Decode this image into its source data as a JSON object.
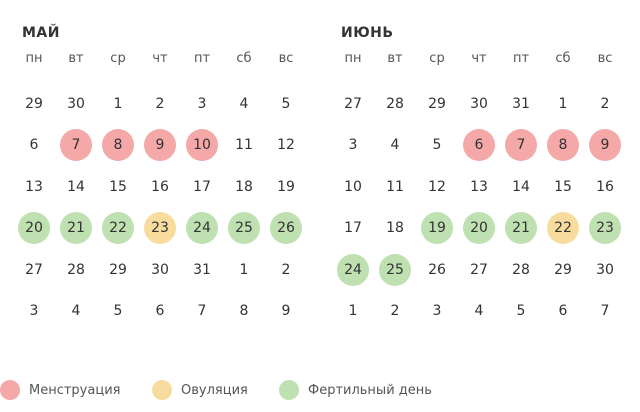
{
  "colors": {
    "menstruation": "#f4a8a8",
    "ovulation": "#f8dc9e",
    "fertile": "#bfe0b0"
  },
  "months": [
    {
      "title": "МАЙ",
      "weekdays": [
        "пн",
        "вт",
        "ср",
        "чт",
        "пт",
        "сб",
        "вс"
      ],
      "weeks": [
        [
          {
            "d": "29",
            "t": ""
          },
          {
            "d": "30",
            "t": ""
          },
          {
            "d": "1",
            "t": ""
          },
          {
            "d": "2",
            "t": ""
          },
          {
            "d": "3",
            "t": ""
          },
          {
            "d": "4",
            "t": ""
          },
          {
            "d": "5",
            "t": ""
          }
        ],
        [
          {
            "d": "6",
            "t": ""
          },
          {
            "d": "7",
            "t": "m"
          },
          {
            "d": "8",
            "t": "m"
          },
          {
            "d": "9",
            "t": "m"
          },
          {
            "d": "10",
            "t": "m"
          },
          {
            "d": "11",
            "t": ""
          },
          {
            "d": "12",
            "t": ""
          }
        ],
        [
          {
            "d": "13",
            "t": ""
          },
          {
            "d": "14",
            "t": ""
          },
          {
            "d": "15",
            "t": ""
          },
          {
            "d": "16",
            "t": ""
          },
          {
            "d": "17",
            "t": ""
          },
          {
            "d": "18",
            "t": ""
          },
          {
            "d": "19",
            "t": ""
          }
        ],
        [
          {
            "d": "20",
            "t": "f"
          },
          {
            "d": "21",
            "t": "f"
          },
          {
            "d": "22",
            "t": "f"
          },
          {
            "d": "23",
            "t": "o"
          },
          {
            "d": "24",
            "t": "f"
          },
          {
            "d": "25",
            "t": "f"
          },
          {
            "d": "26",
            "t": "f"
          }
        ],
        [
          {
            "d": "27",
            "t": ""
          },
          {
            "d": "28",
            "t": ""
          },
          {
            "d": "29",
            "t": ""
          },
          {
            "d": "30",
            "t": ""
          },
          {
            "d": "31",
            "t": ""
          },
          {
            "d": "1",
            "t": ""
          },
          {
            "d": "2",
            "t": ""
          }
        ],
        [
          {
            "d": "3",
            "t": ""
          },
          {
            "d": "4",
            "t": ""
          },
          {
            "d": "5",
            "t": ""
          },
          {
            "d": "6",
            "t": ""
          },
          {
            "d": "7",
            "t": ""
          },
          {
            "d": "8",
            "t": ""
          },
          {
            "d": "9",
            "t": ""
          }
        ]
      ]
    },
    {
      "title": "ИЮНЬ",
      "weekdays": [
        "пн",
        "вт",
        "ср",
        "чт",
        "пт",
        "сб",
        "вс"
      ],
      "weeks": [
        [
          {
            "d": "27",
            "t": ""
          },
          {
            "d": "28",
            "t": ""
          },
          {
            "d": "29",
            "t": ""
          },
          {
            "d": "30",
            "t": ""
          },
          {
            "d": "31",
            "t": ""
          },
          {
            "d": "1",
            "t": ""
          },
          {
            "d": "2",
            "t": ""
          }
        ],
        [
          {
            "d": "3",
            "t": ""
          },
          {
            "d": "4",
            "t": ""
          },
          {
            "d": "5",
            "t": ""
          },
          {
            "d": "6",
            "t": "m"
          },
          {
            "d": "7",
            "t": "m"
          },
          {
            "d": "8",
            "t": "m"
          },
          {
            "d": "9",
            "t": "m"
          }
        ],
        [
          {
            "d": "10",
            "t": ""
          },
          {
            "d": "11",
            "t": ""
          },
          {
            "d": "12",
            "t": ""
          },
          {
            "d": "13",
            "t": ""
          },
          {
            "d": "14",
            "t": ""
          },
          {
            "d": "15",
            "t": ""
          },
          {
            "d": "16",
            "t": ""
          }
        ],
        [
          {
            "d": "17",
            "t": ""
          },
          {
            "d": "18",
            "t": ""
          },
          {
            "d": "19",
            "t": "f"
          },
          {
            "d": "20",
            "t": "f"
          },
          {
            "d": "21",
            "t": "f"
          },
          {
            "d": "22",
            "t": "o"
          },
          {
            "d": "23",
            "t": "f"
          }
        ],
        [
          {
            "d": "24",
            "t": "f"
          },
          {
            "d": "25",
            "t": "f"
          },
          {
            "d": "26",
            "t": ""
          },
          {
            "d": "27",
            "t": ""
          },
          {
            "d": "28",
            "t": ""
          },
          {
            "d": "29",
            "t": ""
          },
          {
            "d": "30",
            "t": ""
          }
        ],
        [
          {
            "d": "1",
            "t": ""
          },
          {
            "d": "2",
            "t": ""
          },
          {
            "d": "3",
            "t": ""
          },
          {
            "d": "4",
            "t": ""
          },
          {
            "d": "5",
            "t": ""
          },
          {
            "d": "6",
            "t": ""
          },
          {
            "d": "7",
            "t": ""
          }
        ]
      ]
    }
  ],
  "legend": {
    "menstruation": "Менструация",
    "ovulation": "Овуляция",
    "fertile": "Фертильный день"
  }
}
